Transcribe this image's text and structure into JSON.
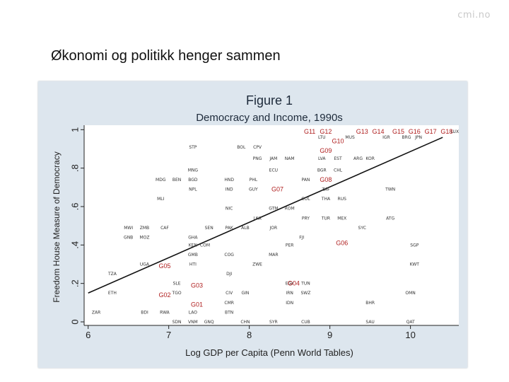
{
  "brand": "cmi.no",
  "slide_title": "Økonomi og politikk henger sammen",
  "chart_data": {
    "type": "scatter",
    "figure_label": "Figure 1",
    "title": "Democracy and Income, 1990s",
    "xlabel": "Log GDP per Capita (Penn World Tables)",
    "ylabel": "Freedom House Measure of Democracy",
    "xlim": [
      5.95,
      10.6
    ],
    "ylim": [
      0,
      1.0
    ],
    "xticks": [
      {
        "v": 6,
        "t": "6"
      },
      {
        "v": 7,
        "t": "7"
      },
      {
        "v": 8,
        "t": "8"
      },
      {
        "v": 9,
        "t": "9"
      },
      {
        "v": 10,
        "t": "10"
      }
    ],
    "yticks": [
      {
        "v": 0,
        "t": "0"
      },
      {
        "v": 0.2,
        "t": ".2"
      },
      {
        "v": 0.4,
        "t": ".4"
      },
      {
        "v": 0.6,
        "t": ".6"
      },
      {
        "v": 0.8,
        "t": ".8"
      },
      {
        "v": 1,
        "t": "1"
      }
    ],
    "fit_line": {
      "x": [
        6.0,
        10.4
      ],
      "y": [
        0.15,
        0.96
      ]
    },
    "country_points": [
      {
        "c": "LUX",
        "x": 10.55,
        "y": 0.99
      },
      {
        "c": "MUS",
        "x": 9.25,
        "y": 0.96
      },
      {
        "c": "IGR",
        "x": 9.7,
        "y": 0.96
      },
      {
        "c": "BRG",
        "x": 9.95,
        "y": 0.96
      },
      {
        "c": "JPN",
        "x": 10.1,
        "y": 0.96
      },
      {
        "c": "LTU",
        "x": 8.9,
        "y": 0.96
      },
      {
        "c": "STP",
        "x": 7.3,
        "y": 0.91
      },
      {
        "c": "BOL",
        "x": 7.9,
        "y": 0.91
      },
      {
        "c": "CPV",
        "x": 8.1,
        "y": 0.91
      },
      {
        "c": "PNG",
        "x": 8.1,
        "y": 0.85
      },
      {
        "c": "JAM",
        "x": 8.3,
        "y": 0.85
      },
      {
        "c": "NAM",
        "x": 8.5,
        "y": 0.85
      },
      {
        "c": "LVA",
        "x": 8.9,
        "y": 0.85
      },
      {
        "c": "EST",
        "x": 9.1,
        "y": 0.85
      },
      {
        "c": "ARG",
        "x": 9.35,
        "y": 0.85
      },
      {
        "c": "KOR",
        "x": 9.5,
        "y": 0.85
      },
      {
        "c": "MNG",
        "x": 7.3,
        "y": 0.79
      },
      {
        "c": "ECU",
        "x": 8.3,
        "y": 0.79
      },
      {
        "c": "BGR",
        "x": 8.9,
        "y": 0.79
      },
      {
        "c": "CHL",
        "x": 9.1,
        "y": 0.79
      },
      {
        "c": "MDG",
        "x": 6.9,
        "y": 0.74
      },
      {
        "c": "BEN",
        "x": 7.1,
        "y": 0.74
      },
      {
        "c": "BGD",
        "x": 7.3,
        "y": 0.74
      },
      {
        "c": "HND",
        "x": 7.75,
        "y": 0.74
      },
      {
        "c": "PHL",
        "x": 8.05,
        "y": 0.74
      },
      {
        "c": "PAN",
        "x": 8.7,
        "y": 0.74
      },
      {
        "c": "NPL",
        "x": 7.3,
        "y": 0.69
      },
      {
        "c": "IND",
        "x": 7.75,
        "y": 0.69
      },
      {
        "c": "GUY",
        "x": 8.05,
        "y": 0.69
      },
      {
        "c": "ZAF",
        "x": 8.95,
        "y": 0.69
      },
      {
        "c": "TWN",
        "x": 9.75,
        "y": 0.69
      },
      {
        "c": "MLI",
        "x": 6.9,
        "y": 0.64
      },
      {
        "c": "COL",
        "x": 8.7,
        "y": 0.64
      },
      {
        "c": "THA",
        "x": 8.95,
        "y": 0.64
      },
      {
        "c": "RUS",
        "x": 9.15,
        "y": 0.64
      },
      {
        "c": "NIC",
        "x": 7.75,
        "y": 0.59
      },
      {
        "c": "GTM",
        "x": 8.3,
        "y": 0.59
      },
      {
        "c": "ROM",
        "x": 8.5,
        "y": 0.59
      },
      {
        "c": "LKA",
        "x": 8.1,
        "y": 0.54
      },
      {
        "c": "PRY",
        "x": 8.7,
        "y": 0.54
      },
      {
        "c": "TUR",
        "x": 8.95,
        "y": 0.54
      },
      {
        "c": "MEX",
        "x": 9.15,
        "y": 0.54
      },
      {
        "c": "ATG",
        "x": 9.75,
        "y": 0.54
      },
      {
        "c": "MWI",
        "x": 6.5,
        "y": 0.49
      },
      {
        "c": "ZMB",
        "x": 6.7,
        "y": 0.49
      },
      {
        "c": "CAF",
        "x": 6.95,
        "y": 0.49
      },
      {
        "c": "SEN",
        "x": 7.5,
        "y": 0.49
      },
      {
        "c": "PAK",
        "x": 7.75,
        "y": 0.49
      },
      {
        "c": "ALB",
        "x": 7.95,
        "y": 0.49
      },
      {
        "c": "JOR",
        "x": 8.3,
        "y": 0.49
      },
      {
        "c": "SYC",
        "x": 9.4,
        "y": 0.49
      },
      {
        "c": "GNB",
        "x": 6.5,
        "y": 0.44
      },
      {
        "c": "MOZ",
        "x": 6.7,
        "y": 0.44
      },
      {
        "c": "GHA",
        "x": 7.3,
        "y": 0.44
      },
      {
        "c": "FJI",
        "x": 8.65,
        "y": 0.44
      },
      {
        "c": "KEN",
        "x": 7.3,
        "y": 0.4
      },
      {
        "c": "COM",
        "x": 7.45,
        "y": 0.4
      },
      {
        "c": "PER",
        "x": 8.5,
        "y": 0.4
      },
      {
        "c": "SGP",
        "x": 10.05,
        "y": 0.4
      },
      {
        "c": "GMB",
        "x": 7.3,
        "y": 0.35
      },
      {
        "c": "COG",
        "x": 7.75,
        "y": 0.35
      },
      {
        "c": "MAR",
        "x": 8.3,
        "y": 0.35
      },
      {
        "c": "UGA",
        "x": 6.7,
        "y": 0.3
      },
      {
        "c": "HTI",
        "x": 7.3,
        "y": 0.3
      },
      {
        "c": "ZWE",
        "x": 8.1,
        "y": 0.3
      },
      {
        "c": "KWT",
        "x": 10.05,
        "y": 0.3
      },
      {
        "c": "TZA",
        "x": 6.3,
        "y": 0.25
      },
      {
        "c": "DJI",
        "x": 7.75,
        "y": 0.25
      },
      {
        "c": "SLE",
        "x": 7.1,
        "y": 0.2
      },
      {
        "c": "EGY",
        "x": 8.5,
        "y": 0.2
      },
      {
        "c": "TUN",
        "x": 8.7,
        "y": 0.2
      },
      {
        "c": "ETH",
        "x": 6.3,
        "y": 0.15
      },
      {
        "c": "TGO",
        "x": 7.1,
        "y": 0.15
      },
      {
        "c": "CIV",
        "x": 7.75,
        "y": 0.15
      },
      {
        "c": "GIN",
        "x": 7.95,
        "y": 0.15
      },
      {
        "c": "IRN",
        "x": 8.5,
        "y": 0.15
      },
      {
        "c": "SWZ",
        "x": 8.7,
        "y": 0.15
      },
      {
        "c": "OMN",
        "x": 10.0,
        "y": 0.15
      },
      {
        "c": "CMR",
        "x": 7.75,
        "y": 0.1
      },
      {
        "c": "IDN",
        "x": 8.5,
        "y": 0.1
      },
      {
        "c": "BHR",
        "x": 9.5,
        "y": 0.1
      },
      {
        "c": "ZAR",
        "x": 6.1,
        "y": 0.05
      },
      {
        "c": "BDI",
        "x": 6.7,
        "y": 0.05
      },
      {
        "c": "RWA",
        "x": 6.95,
        "y": 0.05
      },
      {
        "c": "LAO",
        "x": 7.3,
        "y": 0.05
      },
      {
        "c": "BTN",
        "x": 7.75,
        "y": 0.05
      },
      {
        "c": "SDN",
        "x": 7.1,
        "y": 0.0
      },
      {
        "c": "VNM",
        "x": 7.3,
        "y": 0.0
      },
      {
        "c": "GNQ",
        "x": 7.5,
        "y": 0.0
      },
      {
        "c": "CHN",
        "x": 7.95,
        "y": 0.0
      },
      {
        "c": "SYR",
        "x": 8.3,
        "y": 0.0
      },
      {
        "c": "CUB",
        "x": 8.7,
        "y": 0.0
      },
      {
        "c": "SAU",
        "x": 9.5,
        "y": 0.0
      },
      {
        "c": "QAT",
        "x": 10.0,
        "y": 0.0
      }
    ],
    "group_points": [
      {
        "g": "G01",
        "x": 7.35,
        "y": 0.09
      },
      {
        "g": "G02",
        "x": 6.95,
        "y": 0.14
      },
      {
        "g": "G03",
        "x": 7.35,
        "y": 0.19
      },
      {
        "g": "G04",
        "x": 8.55,
        "y": 0.2
      },
      {
        "g": "G05",
        "x": 6.95,
        "y": 0.29
      },
      {
        "g": "G06",
        "x": 9.15,
        "y": 0.41
      },
      {
        "g": "G07",
        "x": 8.35,
        "y": 0.69
      },
      {
        "g": "G08",
        "x": 8.95,
        "y": 0.74
      },
      {
        "g": "G09",
        "x": 8.95,
        "y": 0.89
      },
      {
        "g": "G10",
        "x": 9.1,
        "y": 0.94
      },
      {
        "g": "G11",
        "x": 8.75,
        "y": 0.99
      },
      {
        "g": "G12",
        "x": 8.95,
        "y": 0.99
      },
      {
        "g": "G13",
        "x": 9.4,
        "y": 0.99
      },
      {
        "g": "G14",
        "x": 9.6,
        "y": 0.99
      },
      {
        "g": "G15",
        "x": 9.85,
        "y": 0.99
      },
      {
        "g": "G16",
        "x": 10.05,
        "y": 0.99
      },
      {
        "g": "G17",
        "x": 10.25,
        "y": 0.99
      },
      {
        "g": "G18",
        "x": 10.45,
        "y": 0.99
      }
    ]
  }
}
